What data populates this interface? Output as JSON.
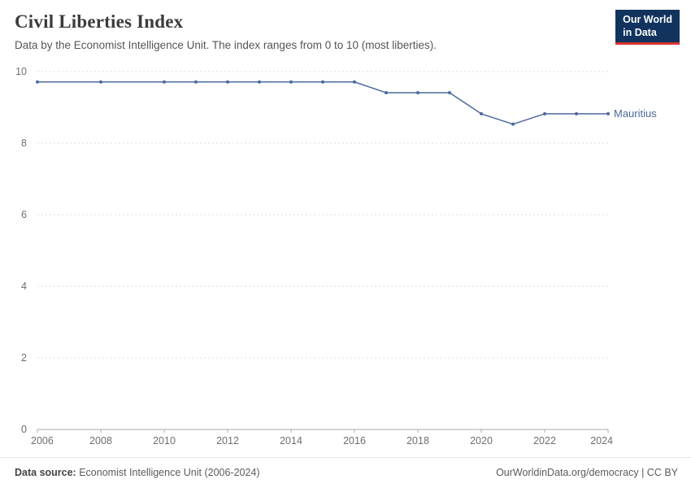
{
  "header": {
    "title": "Civil Liberties Index",
    "subtitle": "Data by the Economist Intelligence Unit. The index ranges from 0 to 10 (most liberties)."
  },
  "logo": {
    "line1": "Our World",
    "line2": "in Data",
    "bg_color": "#12335e",
    "accent_color": "#d73532"
  },
  "chart_data": {
    "type": "line",
    "title": "Civil Liberties Index",
    "entity": "Mauritius",
    "x": [
      2006,
      2008,
      2010,
      2011,
      2012,
      2013,
      2014,
      2015,
      2016,
      2017,
      2018,
      2019,
      2020,
      2021,
      2022,
      2023,
      2024
    ],
    "series": [
      {
        "name": "Mauritius",
        "color": "#4c6a9c",
        "values": [
          9.71,
          9.71,
          9.71,
          9.71,
          9.71,
          9.71,
          9.71,
          9.71,
          9.71,
          9.41,
          9.41,
          9.41,
          8.82,
          8.53,
          8.82,
          8.82,
          8.82
        ]
      }
    ],
    "xlim": [
      2006,
      2024
    ],
    "ylim": [
      0,
      10
    ],
    "yticks": [
      0,
      2,
      4,
      6,
      8,
      10
    ],
    "xticks": [
      2006,
      2008,
      2010,
      2012,
      2014,
      2016,
      2018,
      2020,
      2022,
      2024
    ],
    "grid": "dashed-horizontal",
    "legend_position": "end-of-line-label"
  },
  "footer": {
    "source_label": "Data source:",
    "source_text": "Economist Intelligence Unit (2006-2024)",
    "right_text": "OurWorldinData.org/democracy | CC BY"
  }
}
